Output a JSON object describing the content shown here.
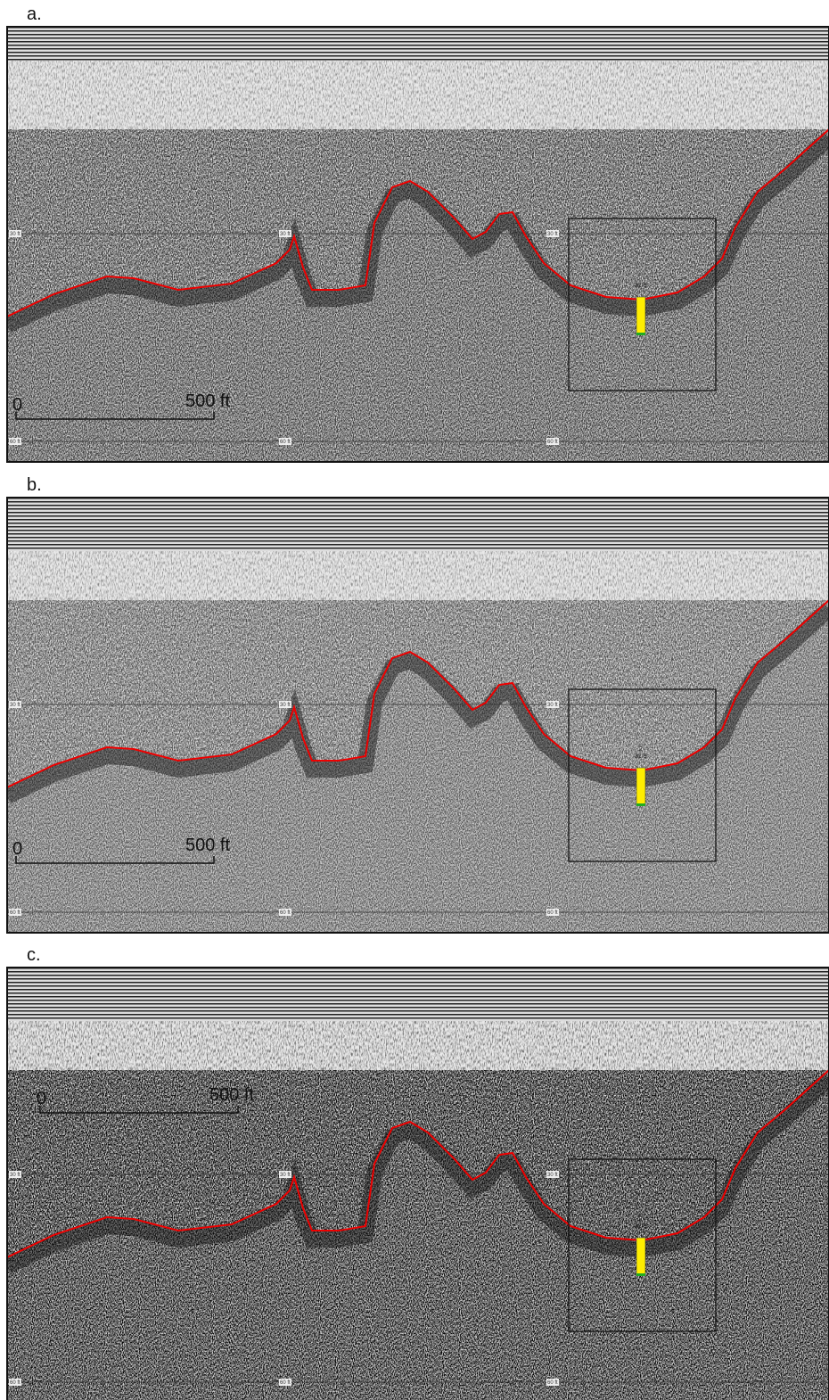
{
  "panels": [
    {
      "label": "a.",
      "scale_bar": {
        "start": "0",
        "end": "500 ft"
      },
      "depth_labels": {
        "upper": [
          "30 ft",
          "30 ft",
          "30 ft"
        ],
        "lower": [
          "60 ft",
          "60 ft",
          "60 ft"
        ]
      },
      "marker": {
        "value_label": "31.9"
      }
    },
    {
      "label": "b.",
      "scale_bar": {
        "start": "0",
        "end": "500 ft"
      },
      "depth_labels": {
        "upper": [
          "30 ft",
          "30 ft",
          "30 ft"
        ],
        "lower": [
          "60 ft",
          "60 ft",
          "60 ft"
        ]
      },
      "marker": {
        "id": "2",
        "value_label": "31.9"
      }
    },
    {
      "label": "c.",
      "scale_bar": {
        "start": "0",
        "end": "500 ft"
      },
      "depth_labels": {
        "upper": [
          "30 ft",
          "30 ft",
          "30 ft"
        ],
        "lower": [
          "60 ft",
          "60 ft",
          "60 ft"
        ]
      },
      "marker": {
        "id": "2",
        "value_label": "31.9"
      }
    }
  ]
}
